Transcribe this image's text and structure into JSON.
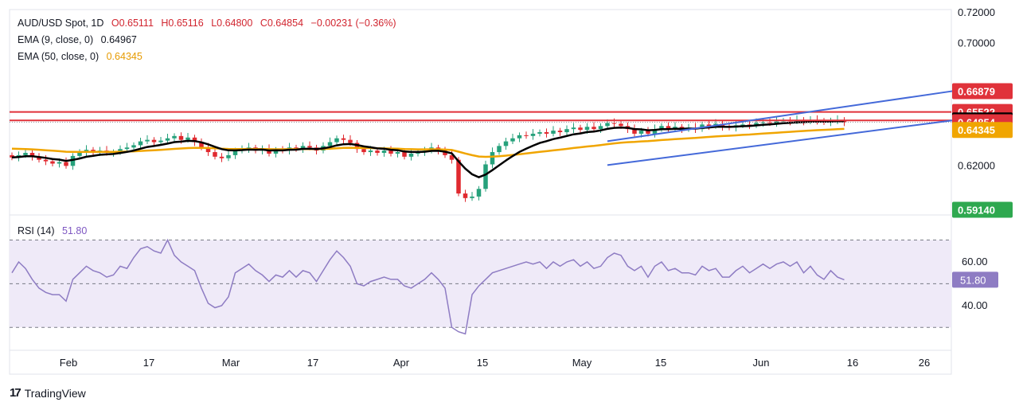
{
  "legend": {
    "symbol": "AUD/USD Spot, 1D",
    "open": "O0.65111",
    "high": "H0.65116",
    "low": "L0.64800",
    "close": "C0.64854",
    "change": "−0.00231 (−0.36%)",
    "ema9_label": "EMA (9, close, 0)",
    "ema9_value": "0.64967",
    "ema50_label": "EMA (50, close, 0)",
    "ema50_value": "0.64345",
    "rsi_label": "RSI (14)",
    "rsi_value": "51.80"
  },
  "brand": "TradingView",
  "colors": {
    "up": "#26a17b",
    "down": "#e0292f",
    "ema9": "#000000",
    "ema50": "#f0a500",
    "trend": "#4469d9",
    "resistance": "#e0323a",
    "rsi": "#8e7cc3",
    "rsi_band": "#efeaf8"
  },
  "chart_data": [
    {
      "type": "candlestick",
      "title": "AUD/USD Spot, 1D",
      "x_ticks": [
        "Feb",
        "17",
        "Mar",
        "17",
        "Apr",
        "15",
        "May",
        "15",
        "Jun",
        "16",
        "26"
      ],
      "y_ticks": [
        "0.72000",
        "0.70000",
        "0.62000"
      ],
      "ylim": [
        0.588,
        0.722
      ],
      "price_labels": [
        {
          "text": "0.66879",
          "value": 0.66879,
          "color": "#e0323a"
        },
        {
          "text": "0.65522",
          "value": 0.65522,
          "color": "#e0323a"
        },
        {
          "text": "0.64967",
          "value": 0.64967,
          "color": "#000000"
        },
        {
          "text": "0.64854",
          "value": 0.64854,
          "color": "#e0323a"
        },
        {
          "text": "0.64345",
          "value": 0.64345,
          "color": "#f0a500"
        },
        {
          "text": "0.59140",
          "value": 0.5914,
          "color": "#2ea84f"
        }
      ],
      "horizontal_levels": [
        0.6552,
        0.6497
      ],
      "channel_upper": {
        "from": [
          88,
          0.6361
        ],
        "to": [
          139,
          0.6688
        ]
      },
      "channel_lower": {
        "from": [
          88,
          0.6205
        ],
        "to": [
          139,
          0.6497
        ]
      },
      "close": [
        0.6255,
        0.627,
        0.6285,
        0.626,
        0.624,
        0.623,
        0.6215,
        0.6225,
        0.62,
        0.6265,
        0.6285,
        0.6305,
        0.629,
        0.63,
        0.6285,
        0.629,
        0.631,
        0.632,
        0.6335,
        0.636,
        0.637,
        0.6355,
        0.6365,
        0.638,
        0.6395,
        0.637,
        0.6385,
        0.6355,
        0.632,
        0.629,
        0.626,
        0.625,
        0.627,
        0.63,
        0.631,
        0.632,
        0.63,
        0.631,
        0.628,
        0.6305,
        0.63,
        0.632,
        0.631,
        0.633,
        0.632,
        0.63,
        0.633,
        0.6355,
        0.638,
        0.637,
        0.635,
        0.631,
        0.629,
        0.63,
        0.6285,
        0.63,
        0.628,
        0.629,
        0.626,
        0.628,
        0.629,
        0.63,
        0.632,
        0.63,
        0.627,
        0.624,
        0.602,
        0.599,
        0.6,
        0.605,
        0.621,
        0.629,
        0.633,
        0.636,
        0.638,
        0.64,
        0.6395,
        0.641,
        0.642,
        0.641,
        0.643,
        0.642,
        0.644,
        0.645,
        0.6435,
        0.6455,
        0.644,
        0.646,
        0.648,
        0.6475,
        0.646,
        0.644,
        0.641,
        0.643,
        0.641,
        0.644,
        0.646,
        0.644,
        0.6455,
        0.644,
        0.645,
        0.644,
        0.647,
        0.646,
        0.6475,
        0.6455,
        0.645,
        0.6465,
        0.647,
        0.6465,
        0.648,
        0.6485,
        0.648,
        0.649,
        0.6495,
        0.649,
        0.65,
        0.649,
        0.65,
        0.6495,
        0.6485,
        0.649,
        0.65,
        0.6485
      ],
      "ema9": 0.64967,
      "ema50": 0.64345
    },
    {
      "type": "line",
      "title": "RSI (14)",
      "y_ticks": [
        "60.00",
        "40.00"
      ],
      "ylim": [
        19.5,
        81.5
      ],
      "band": [
        30,
        70
      ],
      "midline": 50,
      "last_value": 51.8,
      "values": [
        55.0,
        60.0,
        57.0,
        52.0,
        48.0,
        46.0,
        45.0,
        45.0,
        42.0,
        52.0,
        55.0,
        58.0,
        56.0,
        55.0,
        53.0,
        54.0,
        58.0,
        57.0,
        62.0,
        66.0,
        67.0,
        65.0,
        64.0,
        70.0,
        63.0,
        60.0,
        58.0,
        56.0,
        48.0,
        41.0,
        39.0,
        40.0,
        44.0,
        55.0,
        57.0,
        59.0,
        56.0,
        54.0,
        51.0,
        54.0,
        53.0,
        56.0,
        53.0,
        56.0,
        55.0,
        51.0,
        56.0,
        61.0,
        65.0,
        62.0,
        58.0,
        50.0,
        49.0,
        51.0,
        52.0,
        53.0,
        52.0,
        52.0,
        49.0,
        48.0,
        50.0,
        52.0,
        55.0,
        52.0,
        48.0,
        30.0,
        28.0,
        27.0,
        45.0,
        49.0,
        52.0,
        55.0,
        56.0,
        57.0,
        58.0,
        59.0,
        60.0,
        59.0,
        60.0,
        57.0,
        60.0,
        58.0,
        60.0,
        61.0,
        58.0,
        60.0,
        57.0,
        58.0,
        62.0,
        64.0,
        63.0,
        58.0,
        56.0,
        58.0,
        53.0,
        58.0,
        60.0,
        56.0,
        57.0,
        55.0,
        55.0,
        54.0,
        58.0,
        56.0,
        57.0,
        53.0,
        53.0,
        56.0,
        58.0,
        55.0,
        57.0,
        59.0,
        57.0,
        59.0,
        60.0,
        58.0,
        60.0,
        55.0,
        58.0,
        54.0,
        52.0,
        56.0,
        53.0,
        51.8
      ]
    }
  ]
}
